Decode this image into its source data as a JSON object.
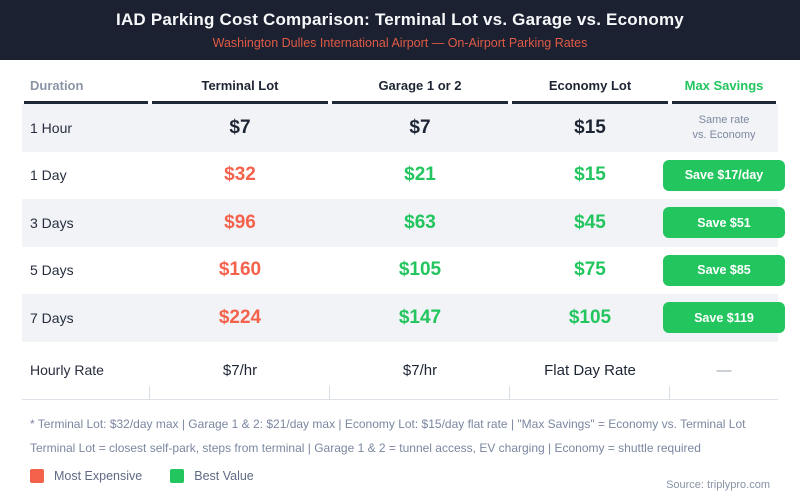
{
  "header": {
    "title": "IAD Parking Cost Comparison: Terminal Lot vs. Garage vs. Economy",
    "subtitle": "Washington Dulles International Airport — On-Airport Parking Rates"
  },
  "colors": {
    "header_bg": "#1b2130",
    "accent_coral": "#f4624c",
    "accent_green": "#22c55e",
    "stripe": "#f1f3f6"
  },
  "table": {
    "columns": [
      {
        "label": "Duration"
      },
      {
        "label": "Terminal Lot"
      },
      {
        "label": "Garage 1 or 2"
      },
      {
        "label": "Economy Lot"
      },
      {
        "label": "Max Savings"
      }
    ],
    "rows": [
      {
        "duration": "1 Hour",
        "terminal": "$7",
        "garage": "$7",
        "economy": "$15",
        "note_line1": "Same rate",
        "note_line2": "vs. Economy"
      },
      {
        "duration": "1 Day",
        "terminal": "$32",
        "garage": "$21",
        "economy": "$15",
        "button": "Save $17/day"
      },
      {
        "duration": "3 Days",
        "terminal": "$96",
        "garage": "$63",
        "economy": "$45",
        "button": "Save $51"
      },
      {
        "duration": "5 Days",
        "terminal": "$160",
        "garage": "$105",
        "economy": "$75",
        "button": "Save $85"
      },
      {
        "duration": "7 Days",
        "terminal": "$224",
        "garage": "$147",
        "economy": "$105",
        "button": "Save $119"
      },
      {
        "duration": "Hourly Rate",
        "terminal": "$7/hr",
        "garage": "$7/hr",
        "economy": "Flat Day Rate",
        "dash": "—"
      }
    ]
  },
  "chart_data": {
    "type": "table",
    "title": "IAD Parking Cost Comparison: Terminal Lot vs. Garage vs. Economy",
    "subtitle": "Washington Dulles International Airport — On-Airport Parking Rates",
    "columns": [
      "Duration",
      "Terminal Lot",
      "Garage 1 or 2",
      "Economy Lot",
      "Max Savings"
    ],
    "categories": [
      "1 Hour",
      "1 Day",
      "3 Days",
      "5 Days",
      "7 Days"
    ],
    "series": [
      {
        "name": "Terminal Lot ($)",
        "values": [
          7,
          32,
          96,
          160,
          224
        ]
      },
      {
        "name": "Garage 1 or 2 ($)",
        "values": [
          7,
          21,
          63,
          105,
          147
        ]
      },
      {
        "name": "Economy Lot ($)",
        "values": [
          15,
          15,
          45,
          75,
          105
        ]
      },
      {
        "name": "Max Savings vs Terminal ($)",
        "values": [
          0,
          17,
          51,
          85,
          119
        ]
      }
    ],
    "rows": [
      [
        "1 Hour",
        "$7",
        "$7",
        "$15",
        "Same rate vs. Economy"
      ],
      [
        "1 Day",
        "$32",
        "$21",
        "$15",
        "Save $17/day"
      ],
      [
        "3 Days",
        "$96",
        "$63",
        "$45",
        "Save $51"
      ],
      [
        "5 Days",
        "$160",
        "$105",
        "$75",
        "Save $85"
      ],
      [
        "7 Days",
        "$224",
        "$147",
        "$105",
        "Save $119"
      ],
      [
        "Hourly Rate",
        "$7/hr",
        "$7/hr",
        "Flat Day Rate",
        "—"
      ]
    ],
    "hourly_rates": {
      "terminal": "$7/hr",
      "garage": "$7/hr",
      "economy": "Flat Day Rate"
    }
  },
  "footnotes": {
    "line1": "* Terminal Lot: $32/day max | Garage 1 & 2: $21/day max | Economy Lot: $15/day flat rate | \"Max Savings\" = Economy vs. Terminal Lot",
    "line2": "Terminal Lot = closest self-park, steps from terminal | Garage 1 & 2 = tunnel access, EV charging | Economy = shuttle required"
  },
  "legend": {
    "most_expensive": "Most Expensive",
    "best_value": "Best Value"
  },
  "source": "Source: triplypro.com"
}
